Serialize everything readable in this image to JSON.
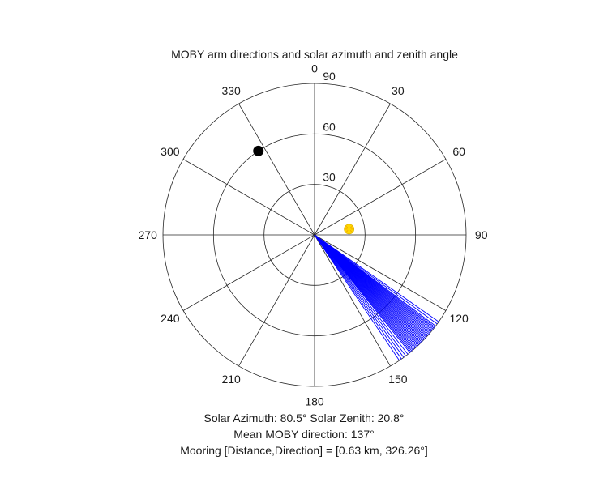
{
  "chart_data": {
    "type": "polar",
    "title": "MOBY arm directions and solar azimuth and zenith angle",
    "angle_ticks": [
      0,
      30,
      60,
      90,
      120,
      150,
      180,
      210,
      240,
      270,
      300,
      330
    ],
    "angle_tick_labels": [
      "0",
      "30",
      "60",
      "90",
      "120",
      "150",
      "180",
      "210",
      "240",
      "270",
      "300",
      "330"
    ],
    "radial_ticks": [
      30,
      60,
      90
    ],
    "radial_tick_labels": [
      "30",
      "60",
      "90"
    ],
    "rlim": [
      0,
      90
    ],
    "angle_zero": "top",
    "angle_direction": "clockwise",
    "grid": true,
    "series": [
      {
        "type": "lines",
        "color": "#0000ff",
        "angles_deg": [
          125,
          126,
          127,
          127.5,
          128,
          128.5,
          129,
          129.5,
          130,
          130.5,
          131,
          131.5,
          132,
          132.5,
          133,
          133.5,
          134,
          134.5,
          135,
          135.5,
          136,
          136.5,
          137,
          137.5,
          138,
          138.5,
          139,
          139.5,
          140,
          140.5,
          141,
          142,
          143,
          144,
          145,
          146
        ],
        "r": [
          90,
          90,
          90,
          90,
          90,
          90,
          90,
          90,
          90,
          90,
          90,
          90,
          90,
          90,
          90,
          90,
          90,
          90,
          90,
          90,
          90,
          90,
          90,
          90,
          90,
          90,
          90,
          90,
          90,
          90,
          90,
          90,
          90,
          90,
          90,
          90
        ]
      },
      {
        "type": "point",
        "color": "#ffd700",
        "azimuth_deg": 80.5,
        "zenith_deg": 20.8,
        "marker": "sun"
      },
      {
        "type": "point",
        "color": "#000000",
        "azimuth_deg": 326.26,
        "r": 60,
        "marker": "circle"
      }
    ]
  },
  "captions": {
    "solar_line": "Solar Azimuth: 80.5°   Solar Zenith: 20.8°",
    "moby_line": "Mean MOBY direction: 137°",
    "mooring_line": "Mooring [Distance,Direction] = [0.63 km, 326.26°]"
  }
}
